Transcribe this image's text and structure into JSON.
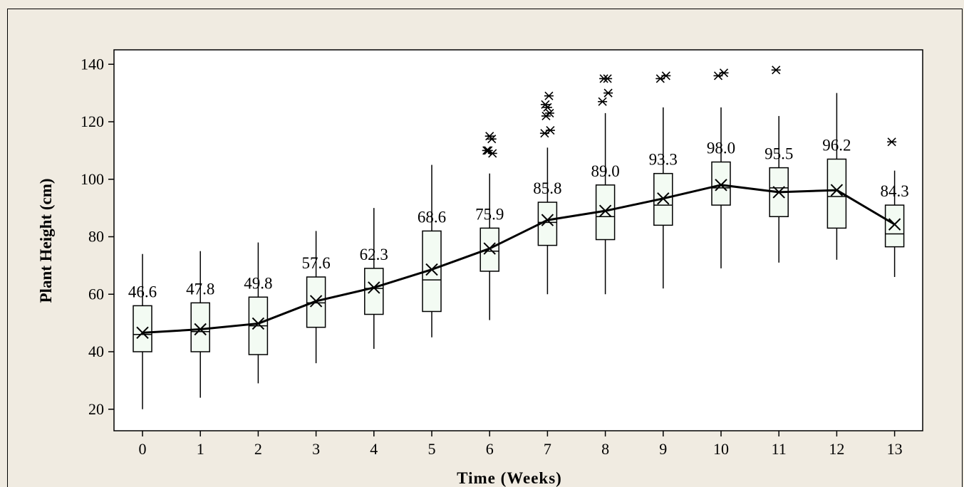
{
  "chart_data": {
    "type": "box",
    "xlabel": "Time (Weeks)",
    "ylabel": "Plant Height (cm)",
    "ylim": [
      15,
      143
    ],
    "yticks": [
      20,
      40,
      60,
      80,
      100,
      120,
      140
    ],
    "colors": {
      "box_fill": "#f3fbf3",
      "line": "#000000",
      "panel": "#ffffff",
      "background": "#f0ebe1"
    },
    "boxes": [
      {
        "x": 0,
        "mean": 46.6,
        "label": "46.6",
        "q1": 40,
        "median": 46,
        "q3": 56,
        "whisker_low": 20,
        "whisker_high": 74,
        "outliers": []
      },
      {
        "x": 1,
        "mean": 47.8,
        "label": "47.8",
        "q1": 40,
        "median": 47,
        "q3": 57,
        "whisker_low": 24,
        "whisker_high": 75,
        "outliers": []
      },
      {
        "x": 2,
        "mean": 49.8,
        "label": "49.8",
        "q1": 39,
        "median": 49,
        "q3": 59,
        "whisker_low": 29,
        "whisker_high": 78,
        "outliers": []
      },
      {
        "x": 3,
        "mean": 57.6,
        "label": "57.6",
        "q1": 48.5,
        "median": 57,
        "q3": 66,
        "whisker_low": 36,
        "whisker_high": 82,
        "outliers": []
      },
      {
        "x": 4,
        "mean": 62.3,
        "label": "62.3",
        "q1": 53,
        "median": 62,
        "q3": 69,
        "whisker_low": 41,
        "whisker_high": 90,
        "outliers": []
      },
      {
        "x": 5,
        "mean": 68.6,
        "label": "68.6",
        "q1": 54,
        "median": 65,
        "q3": 82,
        "whisker_low": 45,
        "whisker_high": 105,
        "outliers": []
      },
      {
        "x": 6,
        "mean": 75.9,
        "label": "75.9",
        "q1": 68,
        "median": 75,
        "q3": 83,
        "whisker_low": 51,
        "whisker_high": 102,
        "outliers": [
          110,
          109,
          110,
          114,
          115
        ]
      },
      {
        "x": 7,
        "mean": 85.8,
        "label": "85.8",
        "q1": 77,
        "median": 85,
        "q3": 92,
        "whisker_low": 60,
        "whisker_high": 111,
        "outliers": [
          116,
          117,
          122,
          123,
          125,
          126,
          129
        ]
      },
      {
        "x": 8,
        "mean": 89.0,
        "label": "89.0",
        "q1": 79,
        "median": 87,
        "q3": 98,
        "whisker_low": 60,
        "whisker_high": 123,
        "outliers": [
          127,
          130,
          135,
          135
        ]
      },
      {
        "x": 9,
        "mean": 93.3,
        "label": "93.3",
        "q1": 84,
        "median": 91,
        "q3": 102,
        "whisker_low": 62,
        "whisker_high": 125,
        "outliers": [
          135,
          136
        ]
      },
      {
        "x": 10,
        "mean": 98.0,
        "label": "98.0",
        "q1": 91,
        "median": 97,
        "q3": 106,
        "whisker_low": 69,
        "whisker_high": 125,
        "outliers": [
          136,
          137
        ]
      },
      {
        "x": 11,
        "mean": 95.5,
        "label": "95.5",
        "q1": 87,
        "median": 97,
        "q3": 104,
        "whisker_low": 71,
        "whisker_high": 122,
        "outliers": [
          138
        ]
      },
      {
        "x": 12,
        "mean": 96.2,
        "label": "96.2",
        "q1": 83,
        "median": 94,
        "q3": 107,
        "whisker_low": 72,
        "whisker_high": 130,
        "outliers": []
      },
      {
        "x": 13,
        "mean": 84.3,
        "label": "84.3",
        "q1": 76.5,
        "median": 81,
        "q3": 91,
        "whisker_low": 66,
        "whisker_high": 103,
        "outliers": [
          113
        ]
      }
    ]
  }
}
